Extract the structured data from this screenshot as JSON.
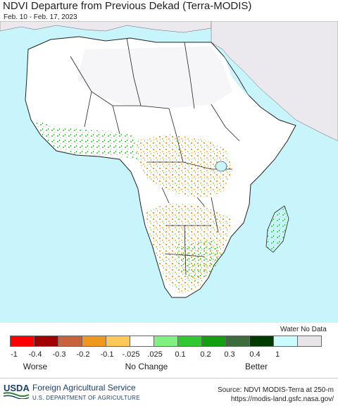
{
  "header": {
    "title": "NDVI Departure from Previous Dekad (Terra-MODIS)",
    "date_range": "Feb. 10 - Feb. 17, 2023"
  },
  "map": {
    "region": "Africa",
    "colors": {
      "ocean": "#c8f5fb",
      "land_no_data": "#ece9ee",
      "land_neutral": "#ffffff",
      "border": "#222222",
      "decline": "#f0a030",
      "improve": "#70d070"
    }
  },
  "legend": {
    "water_label": "Water No Data",
    "swatches": [
      {
        "color": "#ff0000"
      },
      {
        "color": "#a00000"
      },
      {
        "color": "#c8623c"
      },
      {
        "color": "#ee9820"
      },
      {
        "color": "#fcc858"
      },
      {
        "color": "#ffffff"
      },
      {
        "color": "#80f080"
      },
      {
        "color": "#30c830"
      },
      {
        "color": "#10a010"
      },
      {
        "color": "#3c6c3c"
      },
      {
        "color": "#003c00"
      },
      {
        "color": "#c8fcff"
      },
      {
        "color": "#e8e4e8"
      }
    ],
    "ticks": [
      "-1",
      "-0.4",
      "-0.3",
      "-0.2",
      "-0.1",
      "-.025",
      ".025",
      "0.1",
      "0.2",
      "0.3",
      "0.4",
      "1"
    ],
    "categories": [
      "Worse",
      "No Change",
      "Better"
    ]
  },
  "footer": {
    "logo_text": "USDA",
    "agency": "Foreign Agricultural Service",
    "department": "U.S. DEPARTMENT OF AGRICULTURE",
    "source": "Source: NDVI MODIS-Terra at 250-m",
    "url": "https://modis-land.gsfc.nasa.gov/"
  }
}
